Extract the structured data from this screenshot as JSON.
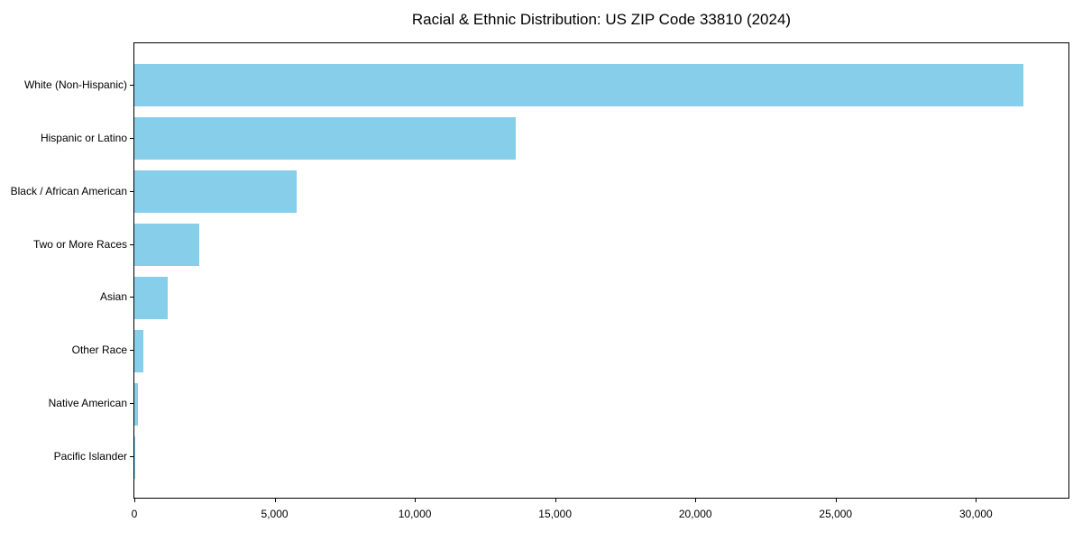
{
  "chart_data": {
    "type": "bar",
    "orientation": "horizontal",
    "title": "Racial & Ethnic Distribution: US ZIP Code 33810 (2024)",
    "categories": [
      "White (Non-Hispanic)",
      "Hispanic or Latino",
      "Black / African American",
      "Two or More Races",
      "Asian",
      "Other Race",
      "Native American",
      "Pacific Islander"
    ],
    "values": [
      31700,
      13600,
      5800,
      2330,
      1200,
      320,
      120,
      20
    ],
    "bar_color": "#87CEEB",
    "xlabel": "",
    "ylabel": "",
    "xlim": [
      0,
      33300
    ],
    "x_ticks": [
      0,
      5000,
      10000,
      15000,
      20000,
      25000,
      30000
    ],
    "x_tick_labels": [
      "0",
      "5,000",
      "10,000",
      "15,000",
      "20,000",
      "25,000",
      "30,000"
    ],
    "grid": false,
    "legend": false,
    "frame": "full-box",
    "text_color": "#000000"
  }
}
